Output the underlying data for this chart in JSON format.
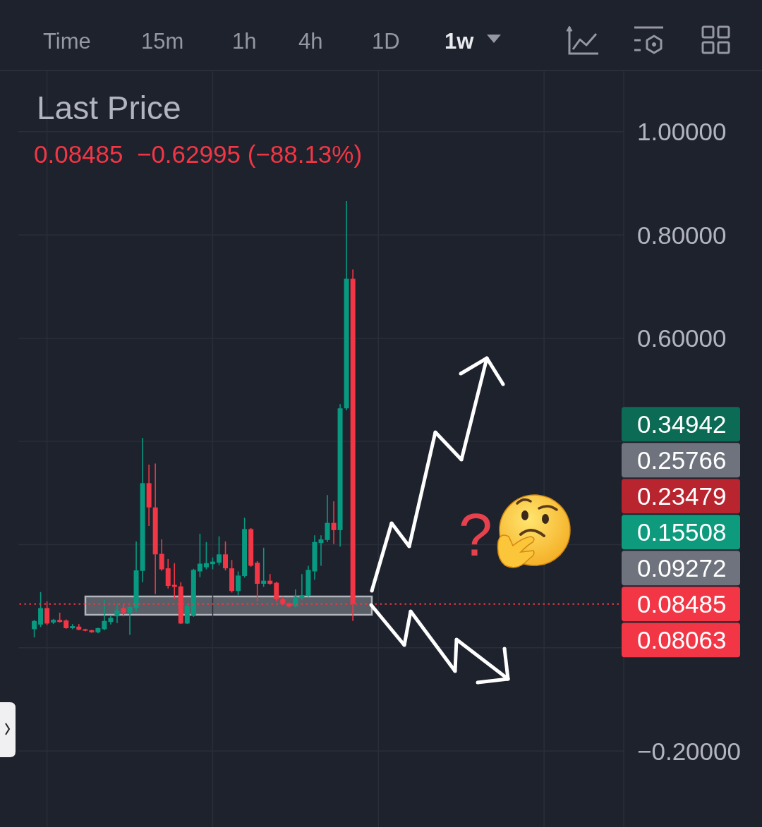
{
  "chart_data": {
    "type": "candlestick",
    "title": "Last Price",
    "subtitle": "0.08485  −0.62995 (−88.13%)",
    "categories": [
      null,
      null,
      null,
      null,
      null,
      null,
      null,
      null,
      null,
      null,
      null,
      null,
      null,
      null,
      null,
      null,
      null,
      null,
      null,
      null,
      null,
      null,
      null,
      null,
      null,
      null,
      null,
      null,
      null,
      null,
      null,
      null,
      null,
      null,
      null,
      null,
      null,
      null,
      null,
      null,
      null,
      null,
      null,
      null,
      null,
      null,
      null,
      null,
      null,
      null,
      null,
      null,
      null,
      null,
      null,
      null,
      null,
      null,
      null,
      null,
      null,
      null,
      null,
      null,
      null,
      null,
      null,
      null,
      null,
      null,
      null,
      null,
      null,
      null,
      null,
      null,
      null,
      null,
      null,
      null,
      null,
      null,
      null,
      null,
      null,
      null,
      null,
      null,
      null,
      null,
      null,
      null,
      null,
      null,
      null
    ],
    "ohlc": [
      null,
      null,
      [
        0.036,
        0.054,
        0.02,
        0.052
      ],
      [
        0.045,
        0.108,
        0.04,
        0.077
      ],
      [
        0.077,
        0.09,
        0.044,
        0.047
      ],
      [
        0.049,
        0.056,
        0.046,
        0.054
      ],
      [
        0.054,
        0.068,
        0.049,
        0.05
      ],
      [
        0.053,
        0.055,
        0.037,
        0.038
      ],
      [
        0.038,
        0.046,
        0.036,
        0.042
      ],
      [
        0.041,
        0.046,
        0.034,
        0.035
      ],
      [
        0.036,
        0.037,
        0.032,
        0.033
      ],
      [
        0.034,
        0.035,
        0.029,
        0.03
      ],
      [
        0.03,
        0.039,
        0.028,
        0.038
      ],
      [
        0.036,
        0.093,
        0.034,
        0.052
      ],
      [
        0.05,
        0.062,
        0.045,
        0.058
      ],
      [
        0.061,
        0.085,
        0.048,
        0.072
      ],
      [
        0.077,
        0.083,
        0.061,
        0.068
      ],
      [
        0.068,
        0.081,
        0.025,
        0.079
      ],
      [
        0.077,
        0.206,
        0.07,
        0.15
      ],
      [
        0.149,
        0.407,
        0.127,
        0.319
      ],
      [
        0.319,
        0.355,
        0.236,
        0.272
      ],
      [
        0.272,
        0.357,
        0.104,
        0.181
      ],
      [
        0.182,
        0.21,
        0.149,
        0.152
      ],
      [
        0.154,
        0.172,
        0.115,
        0.12
      ],
      [
        0.122,
        0.164,
        0.095,
        0.118
      ],
      [
        0.119,
        0.127,
        0.046,
        0.047
      ],
      [
        0.047,
        0.085,
        0.046,
        0.081
      ],
      [
        0.063,
        0.153,
        0.06,
        0.151
      ],
      [
        0.148,
        0.221,
        0.137,
        0.163
      ],
      [
        0.156,
        0.205,
        0.152,
        0.164
      ],
      [
        0.162,
        0.175,
        0.152,
        0.167
      ],
      [
        0.165,
        0.216,
        0.16,
        0.181
      ],
      [
        0.181,
        0.206,
        0.15,
        0.154
      ],
      [
        0.154,
        0.17,
        0.107,
        0.11
      ],
      [
        0.11,
        0.148,
        0.102,
        0.14
      ],
      [
        0.139,
        0.252,
        0.136,
        0.23
      ],
      [
        0.23,
        0.232,
        0.157,
        0.159
      ],
      [
        0.165,
        0.168,
        0.09,
        0.124
      ],
      [
        0.124,
        0.194,
        0.118,
        0.13
      ],
      [
        0.13,
        0.143,
        0.122,
        0.124
      ],
      [
        0.126,
        0.128,
        0.09,
        0.094
      ],
      [
        0.094,
        0.099,
        0.083,
        0.085
      ],
      [
        0.086,
        0.088,
        0.078,
        0.08
      ],
      [
        0.08,
        0.113,
        0.078,
        0.099
      ],
      [
        0.097,
        0.143,
        0.093,
        0.102
      ],
      [
        0.101,
        0.159,
        0.099,
        0.151
      ],
      [
        0.148,
        0.218,
        0.132,
        0.205
      ],
      [
        0.203,
        0.218,
        0.159,
        0.21
      ],
      [
        0.209,
        0.296,
        0.205,
        0.242
      ],
      [
        0.242,
        0.284,
        0.201,
        0.228
      ],
      [
        0.228,
        0.472,
        0.196,
        0.464
      ],
      [
        0.464,
        0.866,
        0.46,
        0.715
      ],
      [
        0.715,
        0.733,
        0.052,
        0.08485
      ],
      null,
      null,
      null,
      null,
      null,
      null,
      null,
      null,
      null,
      null,
      null,
      null,
      null,
      null,
      null,
      null,
      null,
      null,
      null,
      null,
      null,
      null,
      null,
      null,
      null,
      null,
      null,
      null,
      null,
      null,
      null,
      null,
      null,
      null,
      null,
      null,
      null,
      null,
      null,
      null,
      null,
      null
    ],
    "colors": [
      null,
      null,
      "#089981",
      "#089981",
      "#f23645",
      "#089981",
      "#f23645",
      "#f23645",
      "#089981",
      "#f23645",
      "#f23645",
      "#f23645",
      "#089981",
      "#089981",
      "#089981",
      "#089981",
      "#f23645",
      "#089981",
      "#089981",
      "#089981",
      "#f23645",
      "#f23645",
      "#f23645",
      "#f23645",
      "#f23645",
      "#f23645",
      "#089981",
      "#089981",
      "#089981",
      "#089981",
      "#089981",
      "#089981",
      "#f23645",
      "#f23645",
      "#089981",
      "#089981",
      "#f23645",
      "#f23645",
      "#089981",
      "#f23645",
      "#f23645",
      "#f23645",
      "#f23645",
      "#089981",
      "#089981",
      "#089981",
      "#089981",
      "#089981",
      "#089981",
      "#f23645",
      "#089981",
      "#089981",
      "#f23645",
      null,
      null,
      null,
      null,
      null,
      null,
      null,
      null,
      null,
      null,
      null,
      null,
      null,
      null,
      null,
      null,
      null,
      null,
      null,
      null,
      null,
      null,
      null,
      null,
      null,
      null,
      null,
      null,
      null,
      null,
      null,
      null,
      null,
      null,
      null,
      null,
      null,
      null,
      null,
      null,
      null,
      null
    ],
    "ylim": [
      -0.35,
      1.12
    ],
    "yticks": [
      {
        "value": 1,
        "label": "1.00000"
      },
      {
        "value": 0.8,
        "label": "0.80000"
      },
      {
        "value": 0.6,
        "label": "0.60000"
      },
      {
        "value": 0.4,
        "label": null
      },
      {
        "value": 0.2,
        "label": null
      },
      {
        "value": 0,
        "label": null
      },
      {
        "value": -0.2,
        "label": "−0.20000"
      }
    ],
    "tick_labels": "y",
    "grid": true,
    "ref_lines": [
      {
        "axis": "y",
        "value": 0.08485,
        "label": "0.08485",
        "color": "#f23645",
        "line_style": "dotted"
      }
    ],
    "annotations": [
      "Time",
      "15m",
      "1h",
      "4h",
      "1D",
      "1w",
      "0.34942",
      "0.25766",
      "0.23479",
      "0.15508",
      "0.09272",
      "0.08063",
      "?"
    ]
  }
}
